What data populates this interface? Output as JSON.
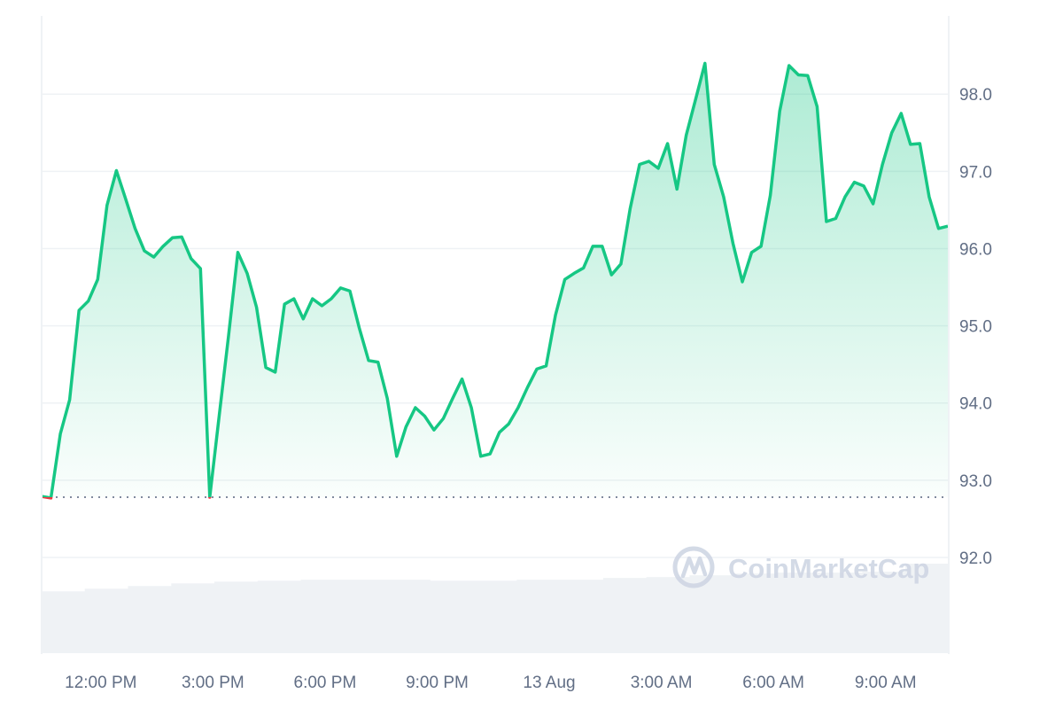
{
  "chart_data": {
    "type": "line",
    "title": "",
    "xlabel": "",
    "ylabel": "",
    "x_start": "12 Aug 10:25",
    "x_interval_minutes": 15,
    "x_ticks": [
      {
        "label": "12:00 PM",
        "time": "12 Aug 12:00"
      },
      {
        "label": "3:00 PM",
        "time": "12 Aug 15:00"
      },
      {
        "label": "6:00 PM",
        "time": "12 Aug 18:00"
      },
      {
        "label": "9:00 PM",
        "time": "12 Aug 21:00"
      },
      {
        "label": "13 Aug",
        "time": "13 Aug 00:00"
      },
      {
        "label": "3:00 AM",
        "time": "13 Aug 03:00"
      },
      {
        "label": "6:00 AM",
        "time": "13 Aug 06:00"
      },
      {
        "label": "9:00 AM",
        "time": "13 Aug 09:00"
      }
    ],
    "y_ticks": [
      "98.0",
      "97.0",
      "96.0",
      "95.0",
      "94.0",
      "93.0",
      "92.0"
    ],
    "ylim": [
      90.76,
      98.99
    ],
    "y_axis_position": "right",
    "grid": true,
    "reference_line": 92.78,
    "values": [
      92.79,
      92.77,
      93.6,
      94.04,
      95.2,
      95.32,
      95.6,
      96.56,
      97.01,
      96.64,
      96.26,
      95.97,
      95.89,
      96.03,
      96.14,
      96.15,
      95.87,
      95.74,
      92.78,
      93.83,
      94.86,
      95.95,
      95.68,
      95.24,
      94.46,
      94.4,
      95.28,
      95.35,
      95.09,
      95.35,
      95.26,
      95.35,
      95.49,
      95.45,
      94.97,
      94.55,
      94.53,
      94.06,
      93.31,
      93.69,
      93.94,
      93.83,
      93.65,
      93.8,
      94.06,
      94.31,
      93.94,
      93.31,
      93.34,
      93.62,
      93.73,
      93.94,
      94.2,
      94.44,
      94.48,
      95.14,
      95.6,
      95.68,
      95.75,
      96.03,
      96.03,
      95.66,
      95.8,
      96.52,
      97.09,
      97.13,
      97.04,
      97.36,
      96.77,
      97.47,
      97.93,
      98.4,
      97.09,
      96.67,
      96.07,
      95.57,
      95.95,
      96.03,
      96.69,
      97.78,
      98.37,
      98.25,
      98.24,
      97.84,
      96.35,
      96.39,
      96.67,
      96.86,
      96.81,
      96.58,
      97.09,
      97.5,
      97.75,
      97.35,
      97.36,
      96.67,
      96.26,
      96.29
    ],
    "volume_relative": [
      0.69,
      0.72,
      0.75,
      0.78,
      0.8,
      0.81,
      0.82,
      0.82,
      0.82,
      0.81,
      0.81,
      0.82,
      0.82,
      0.84,
      0.85,
      0.87,
      0.89,
      0.9,
      0.9,
      0.91,
      1.0
    ],
    "colors": {
      "up": "#16c784",
      "down": "#ea3943",
      "volume": "#eff2f5",
      "grid": "#eff2f5",
      "reference": "#808a9d"
    }
  },
  "watermark": "CoinMarketCap"
}
